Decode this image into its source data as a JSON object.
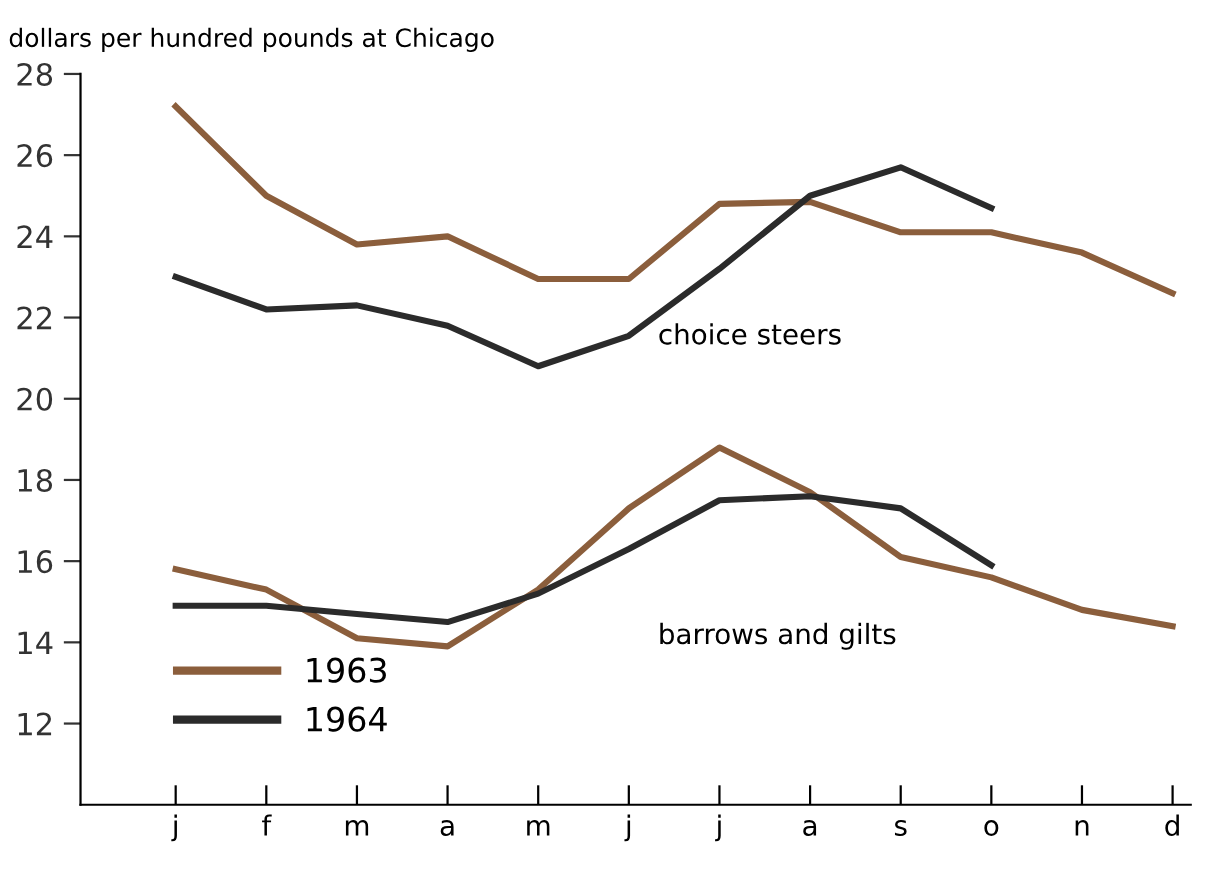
{
  "chart_data": {
    "type": "line",
    "ylabel": "dollars per hundred pounds at Chicago",
    "categories": [
      "j",
      "f",
      "m",
      "a",
      "m",
      "j",
      "j",
      "a",
      "s",
      "o",
      "n",
      "d"
    ],
    "series": [
      {
        "name": "1963",
        "color": "#8b5e3c",
        "values": [
          27.2,
          25.0,
          23.8,
          24.0,
          22.95,
          22.95,
          24.8,
          24.85,
          24.1,
          24.1,
          23.6,
          22.6
        ]
      },
      {
        "name": "1964",
        "color": "#2b2b2b",
        "values": [
          23.0,
          22.2,
          22.3,
          21.8,
          20.8,
          21.55,
          23.2,
          25.0,
          25.7,
          24.7,
          null,
          null
        ]
      },
      {
        "color": "#8b5e3c",
        "values": [
          15.8,
          15.3,
          14.1,
          13.9,
          15.3,
          17.3,
          18.8,
          17.7,
          16.1,
          15.6,
          14.8,
          14.4
        ]
      },
      {
        "color": "#2b2b2b",
        "values": [
          14.9,
          14.9,
          14.7,
          14.5,
          15.2,
          16.3,
          17.5,
          17.6,
          17.3,
          15.9,
          null,
          null
        ]
      }
    ],
    "annotations": [
      "choice steers",
      "barrows and gilts"
    ],
    "ylim": [
      10,
      28
    ],
    "yticks": [
      12,
      14,
      16,
      18,
      20,
      22,
      24,
      26,
      28
    ],
    "grid": false,
    "legend": "bottom left",
    "marker": "none",
    "line_style": "solid"
  }
}
